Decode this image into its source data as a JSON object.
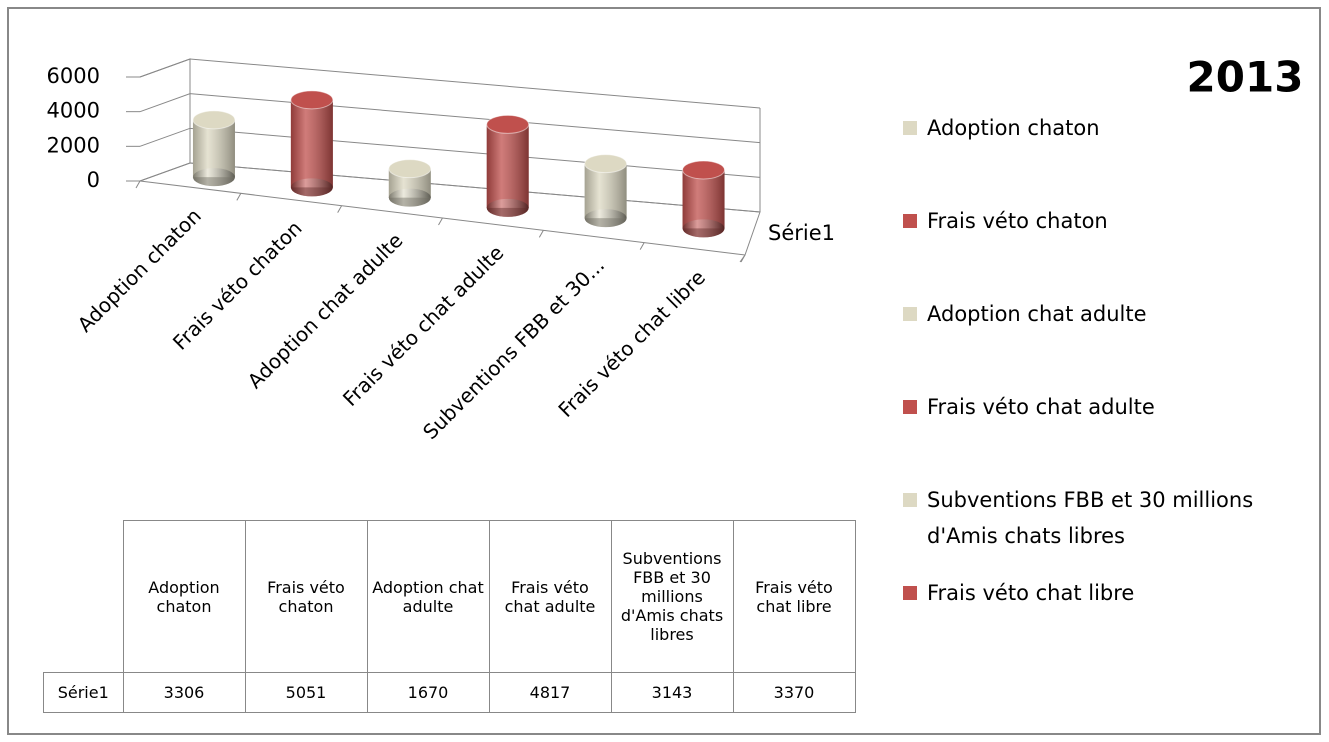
{
  "chart_data": {
    "type": "cylinder3d",
    "title": "2013",
    "categories": [
      "Adoption chaton",
      "Frais véto chaton",
      "Adoption chat adulte",
      "Frais véto chat adulte",
      "Subventions FBB et 30 millions d'Amis chats libres",
      "Frais véto chat libre"
    ],
    "category_axis_labels": [
      "Adoption chaton",
      "Frais véto chaton",
      "Adoption chat adulte",
      "Frais véto chat adulte",
      "Subventions FBB et 30...",
      "Frais véto chat libre"
    ],
    "series": [
      {
        "name": "Série1",
        "values": [
          3306,
          5051,
          1670,
          4817,
          3143,
          3370
        ],
        "colors": [
          "#ddd9c3",
          "#c0504d",
          "#ddd9c3",
          "#c0504d",
          "#ddd9c3",
          "#c0504d"
        ]
      }
    ],
    "ylim": [
      0,
      6000
    ],
    "yticks": [
      0,
      2000,
      4000,
      6000
    ],
    "grid": true,
    "legend": "right",
    "data_table": true
  }
}
